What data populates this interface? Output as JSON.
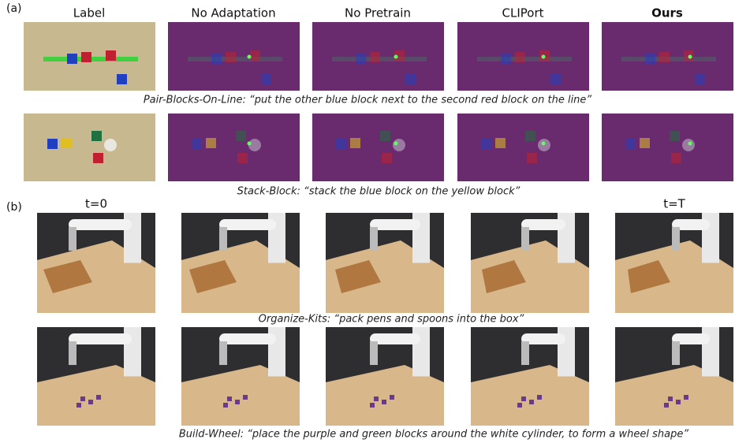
{
  "panel_a": {
    "label": "(a)",
    "column_headers": [
      "Label",
      "No Adaptation",
      "No Pretrain",
      "CLIPort",
      "Ours"
    ],
    "tasks": [
      {
        "caption": "Pair-Blocks-On-Line: “put the other blue block next to the second red block on the line”"
      },
      {
        "caption": "Stack-Block: “stack the blue block on the yellow block”"
      }
    ]
  },
  "panel_b": {
    "label": "(b)",
    "time_labels": [
      "t=0",
      "t=T"
    ],
    "tasks": [
      {
        "caption": "Organize-Kits: “pack pens and spoons into the box”"
      },
      {
        "caption": "Build-Wheel: “place the purple and green blocks around the white cylinder, to form a wheel shape”"
      }
    ]
  }
}
